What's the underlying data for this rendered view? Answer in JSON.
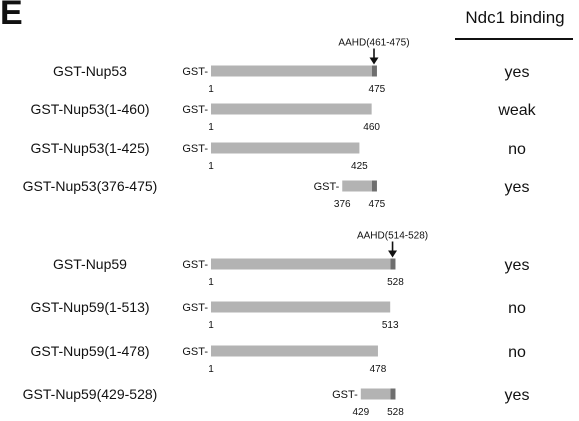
{
  "panel_label": "E",
  "header": {
    "binding_title": "Ndc1 binding"
  },
  "colors": {
    "bar": "#b3b3b3",
    "aahd": "#6f6f6f",
    "text": "#111111"
  },
  "gst_prefix": "GST-",
  "constructs": [
    {
      "name": "GST-Nup53",
      "start": 1,
      "end": 475,
      "start_label": "1",
      "end_label": "475",
      "aahd": [
        461,
        475
      ],
      "binding": "yes"
    },
    {
      "name": "GST-Nup53(1-460)",
      "start": 1,
      "end": 460,
      "start_label": "1",
      "end_label": "460",
      "aahd": null,
      "binding": "weak"
    },
    {
      "name": "GST-Nup53(1-425)",
      "start": 1,
      "end": 425,
      "start_label": "1",
      "end_label": "425",
      "aahd": null,
      "binding": "no"
    },
    {
      "name": "GST-Nup53(376-475)",
      "start": 376,
      "end": 475,
      "start_label": "376",
      "end_label": "475",
      "aahd": [
        461,
        475
      ],
      "binding": "yes"
    },
    {
      "name": "GST-Nup59",
      "start": 1,
      "end": 528,
      "start_label": "1",
      "end_label": "528",
      "aahd": [
        514,
        528
      ],
      "binding": "yes"
    },
    {
      "name": "GST-Nup59(1-513)",
      "start": 1,
      "end": 513,
      "start_label": "1",
      "end_label": "513",
      "aahd": null,
      "binding": "no"
    },
    {
      "name": "GST-Nup59(1-478)",
      "start": 1,
      "end": 478,
      "start_label": "1",
      "end_label": "478",
      "aahd": null,
      "binding": "no"
    },
    {
      "name": "GST-Nup59(429-528)",
      "start": 429,
      "end": 528,
      "start_label": "429",
      "end_label": "528",
      "aahd": [
        514,
        528
      ],
      "binding": "yes"
    }
  ],
  "annotations": [
    {
      "text": "AAHD(461-475)",
      "construct_index": 0
    },
    {
      "text": "AAHD(514-528)",
      "construct_index": 4
    }
  ]
}
